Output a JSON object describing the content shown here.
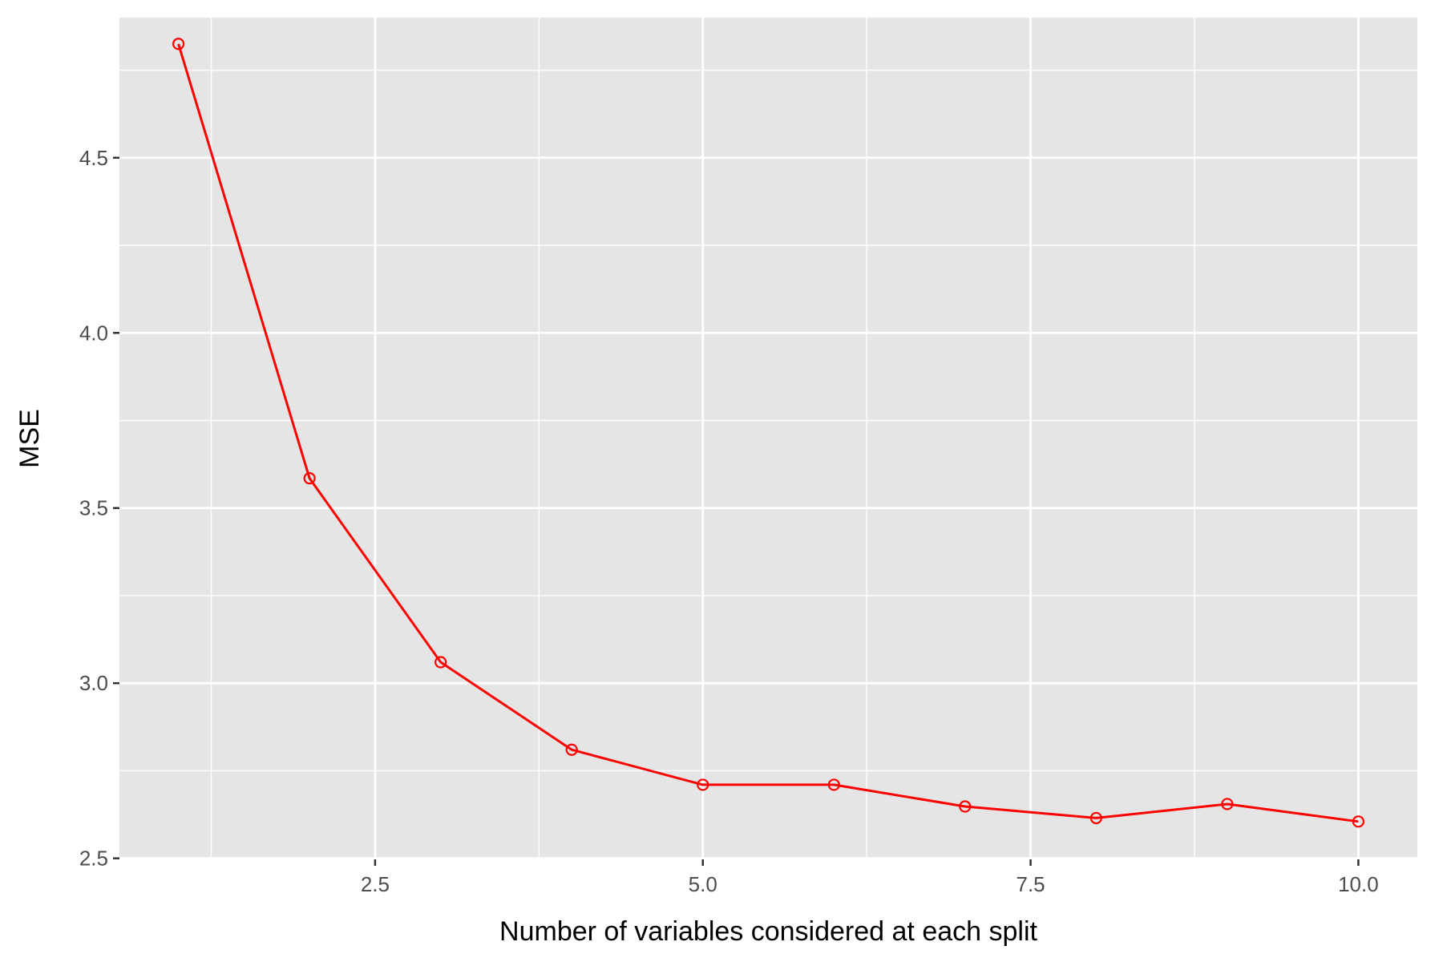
{
  "chart_data": {
    "type": "line",
    "xlabel": "Number of variables considered at each split",
    "ylabel": "MSE",
    "x": [
      1,
      2,
      3,
      4,
      5,
      6,
      7,
      8,
      9,
      10
    ],
    "series": [
      {
        "values": [
          4.825,
          3.585,
          3.06,
          2.81,
          2.71,
          2.71,
          2.648,
          2.615,
          2.655,
          2.605
        ]
      }
    ],
    "xlim": [
      0.55,
      10.45
    ],
    "ylim": [
      2.497,
      4.9
    ],
    "x_ticks": [
      {
        "value": 2.5,
        "label": "2.5"
      },
      {
        "value": 5.0,
        "label": "5.0"
      },
      {
        "value": 7.5,
        "label": "7.5"
      },
      {
        "value": 10.0,
        "label": "10.0"
      }
    ],
    "y_ticks": [
      {
        "value": 2.5,
        "label": "2.5"
      },
      {
        "value": 3.0,
        "label": "3.0"
      },
      {
        "value": 3.5,
        "label": "3.5"
      },
      {
        "value": 4.0,
        "label": "4.0"
      },
      {
        "value": 4.5,
        "label": "4.5"
      }
    ],
    "x_minor_ticks": [
      1.25,
      3.75,
      6.25,
      8.75
    ],
    "y_minor_ticks": [
      2.75,
      3.25,
      3.75,
      4.25,
      4.75
    ],
    "grid": true,
    "marker": "open-circle",
    "colors": {
      "panel": "#e5e5e5",
      "grid": "#ffffff",
      "line": "#ff0000"
    }
  }
}
